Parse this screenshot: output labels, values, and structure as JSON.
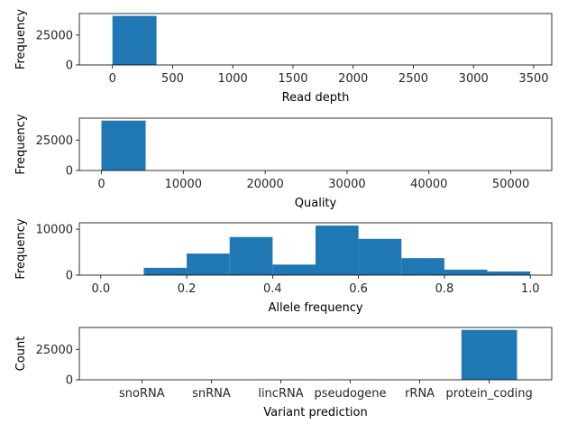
{
  "chart_data": [
    {
      "type": "bar",
      "subtype": "histogram",
      "xlabel": "Read depth",
      "ylabel": "Frequency",
      "xlim": [
        -275,
        3650
      ],
      "ylim": [
        0,
        43000
      ],
      "xticks": [
        0,
        500,
        1000,
        1500,
        2000,
        2500,
        3000,
        3500
      ],
      "xtick_labels": [
        "0",
        "500",
        "1000",
        "1500",
        "2000",
        "2500",
        "3000",
        "3500"
      ],
      "yticks": [
        0,
        25000
      ],
      "ytick_labels": [
        "0",
        "25000"
      ],
      "bins": [
        {
          "x0": 0,
          "x1": 366,
          "value": 41000
        },
        {
          "x0": 366,
          "x1": 732,
          "value": 0
        },
        {
          "x0": 732,
          "x1": 1098,
          "value": 0
        },
        {
          "x0": 1098,
          "x1": 1464,
          "value": 0
        },
        {
          "x0": 1464,
          "x1": 1830,
          "value": 0
        },
        {
          "x0": 1830,
          "x1": 2196,
          "value": 0
        },
        {
          "x0": 2196,
          "x1": 2562,
          "value": 0
        },
        {
          "x0": 2562,
          "x1": 2928,
          "value": 0
        },
        {
          "x0": 2928,
          "x1": 3294,
          "value": 0
        },
        {
          "x0": 3294,
          "x1": 3660,
          "value": 0
        }
      ],
      "color": "#1f77b4"
    },
    {
      "type": "bar",
      "subtype": "histogram",
      "xlabel": "Quality",
      "ylabel": "Frequency",
      "xlim": [
        -2700,
        55000
      ],
      "ylim": [
        0,
        43000
      ],
      "xticks": [
        0,
        10000,
        20000,
        30000,
        40000,
        50000
      ],
      "xtick_labels": [
        "0",
        "10000",
        "20000",
        "30000",
        "40000",
        "50000"
      ],
      "yticks": [
        0,
        25000
      ],
      "ytick_labels": [
        "0",
        "25000"
      ],
      "bins": [
        {
          "x0": 0,
          "x1": 5400,
          "value": 41000
        },
        {
          "x0": 5400,
          "x1": 10800,
          "value": 0
        },
        {
          "x0": 10800,
          "x1": 16200,
          "value": 0
        },
        {
          "x0": 16200,
          "x1": 21600,
          "value": 0
        },
        {
          "x0": 21600,
          "x1": 27000,
          "value": 0
        },
        {
          "x0": 27000,
          "x1": 32400,
          "value": 0
        },
        {
          "x0": 32400,
          "x1": 37800,
          "value": 0
        },
        {
          "x0": 37800,
          "x1": 43200,
          "value": 0
        },
        {
          "x0": 43200,
          "x1": 48600,
          "value": 0
        },
        {
          "x0": 48600,
          "x1": 54000,
          "value": 0
        }
      ],
      "color": "#1f77b4"
    },
    {
      "type": "bar",
      "subtype": "histogram",
      "xlabel": "Allele frequency",
      "ylabel": "Frequency",
      "xlim": [
        -0.05,
        1.05
      ],
      "ylim": [
        0,
        11400
      ],
      "xticks": [
        0.0,
        0.2,
        0.4,
        0.6,
        0.8,
        1.0
      ],
      "xtick_labels": [
        "0.0",
        "0.2",
        "0.4",
        "0.6",
        "0.8",
        "1.0"
      ],
      "yticks": [
        0,
        10000
      ],
      "ytick_labels": [
        "0",
        "10000"
      ],
      "bins": [
        {
          "x0": 0.0,
          "x1": 0.1,
          "value": 0
        },
        {
          "x0": 0.1,
          "x1": 0.2,
          "value": 1600
        },
        {
          "x0": 0.2,
          "x1": 0.3,
          "value": 4700
        },
        {
          "x0": 0.3,
          "x1": 0.4,
          "value": 8300
        },
        {
          "x0": 0.4,
          "x1": 0.5,
          "value": 2300
        },
        {
          "x0": 0.5,
          "x1": 0.6,
          "value": 10800
        },
        {
          "x0": 0.6,
          "x1": 0.7,
          "value": 7900
        },
        {
          "x0": 0.7,
          "x1": 0.8,
          "value": 3700
        },
        {
          "x0": 0.8,
          "x1": 0.9,
          "value": 1200
        },
        {
          "x0": 0.9,
          "x1": 1.0,
          "value": 800
        }
      ],
      "color": "#1f77b4"
    },
    {
      "type": "bar",
      "xlabel": "Variant prediction",
      "ylabel": "Count",
      "categories": [
        "snoRNA",
        "snRNA",
        "lincRNA",
        "pseudogene",
        "rRNA",
        "protein_coding"
      ],
      "values": [
        5,
        10,
        20,
        30,
        5,
        41000
      ],
      "xlim": [
        -0.9,
        5.9
      ],
      "ylim": [
        0,
        43000
      ],
      "yticks": [
        0,
        25000
      ],
      "ytick_labels": [
        "0",
        "25000"
      ],
      "bar_width": 0.8,
      "color": "#1f77b4"
    }
  ]
}
